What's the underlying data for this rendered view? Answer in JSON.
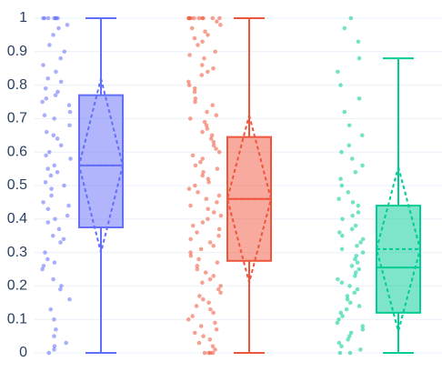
{
  "chart_data": {
    "type": "box",
    "ylim": [
      0,
      1
    ],
    "yticks": [
      0,
      0.1,
      0.2,
      0.3,
      0.4,
      0.5,
      0.6,
      0.7,
      0.8,
      0.9,
      1
    ],
    "grid": true,
    "series": [
      {
        "color": "#636efa",
        "min": 0,
        "q1": 0.375,
        "median": 0.56,
        "q3": 0.77,
        "max": 1,
        "mean": 0.56,
        "sd": 0.26,
        "points": [
          1,
          1,
          1,
          1,
          1,
          1,
          1,
          0.98,
          0.97,
          0.95,
          0.92,
          0.9,
          0.88,
          0.86,
          0.84,
          0.82,
          0.81,
          0.79,
          0.78,
          0.77,
          0.76,
          0.75,
          0.74,
          0.72,
          0.71,
          0.7,
          0.68,
          0.66,
          0.65,
          0.64,
          0.62,
          0.6,
          0.59,
          0.58,
          0.56,
          0.55,
          0.54,
          0.53,
          0.51,
          0.5,
          0.49,
          0.47,
          0.45,
          0.44,
          0.43,
          0.41,
          0.4,
          0.39,
          0.37,
          0.35,
          0.34,
          0.33,
          0.3,
          0.28,
          0.27,
          0.26,
          0.25,
          0.22,
          0.2,
          0.19,
          0.16,
          0.13,
          0.1,
          0.07,
          0.05,
          0.03,
          0.02,
          0.01,
          0
        ]
      },
      {
        "color": "#ef553b",
        "min": 0,
        "q1": 0.275,
        "median": 0.46,
        "q3": 0.645,
        "max": 1,
        "mean": 0.46,
        "sd": 0.25,
        "points": [
          1,
          1,
          1,
          1,
          1,
          1,
          1,
          1,
          1,
          1,
          0.99,
          0.98,
          0.97,
          0.96,
          0.95,
          0.94,
          0.93,
          0.92,
          0.9,
          0.89,
          0.88,
          0.86,
          0.85,
          0.84,
          0.83,
          0.81,
          0.8,
          0.79,
          0.78,
          0.76,
          0.75,
          0.74,
          0.72,
          0.71,
          0.7,
          0.69,
          0.68,
          0.67,
          0.66,
          0.65,
          0.64,
          0.63,
          0.62,
          0.61,
          0.6,
          0.59,
          0.58,
          0.57,
          0.56,
          0.55,
          0.54,
          0.53,
          0.52,
          0.51,
          0.5,
          0.49,
          0.48,
          0.47,
          0.46,
          0.45,
          0.44,
          0.43,
          0.42,
          0.41,
          0.4,
          0.39,
          0.38,
          0.37,
          0.36,
          0.35,
          0.34,
          0.33,
          0.32,
          0.31,
          0.3,
          0.29,
          0.28,
          0.27,
          0.26,
          0.25,
          0.24,
          0.23,
          0.22,
          0.21,
          0.2,
          0.19,
          0.18,
          0.17,
          0.16,
          0.15,
          0.14,
          0.13,
          0.12,
          0.11,
          0.1,
          0.09,
          0.08,
          0.07,
          0.06,
          0.05,
          0.04,
          0.03,
          0.02,
          0.01,
          0,
          0,
          0,
          0
        ]
      },
      {
        "color": "#00cc96",
        "min": 0,
        "q1": 0.12,
        "median": 0.255,
        "q3": 0.44,
        "max": 0.88,
        "mean": 0.31,
        "sd": 0.245,
        "points": [
          1,
          0.97,
          0.93,
          0.88,
          0.84,
          0.8,
          0.76,
          0.72,
          0.68,
          0.65,
          0.62,
          0.6,
          0.58,
          0.56,
          0.54,
          0.52,
          0.5,
          0.48,
          0.46,
          0.45,
          0.44,
          0.42,
          0.41,
          0.4,
          0.38,
          0.37,
          0.36,
          0.35,
          0.34,
          0.33,
          0.32,
          0.31,
          0.3,
          0.29,
          0.28,
          0.27,
          0.26,
          0.25,
          0.24,
          0.23,
          0.22,
          0.21,
          0.2,
          0.19,
          0.18,
          0.17,
          0.16,
          0.15,
          0.14,
          0.13,
          0.12,
          0.11,
          0.1,
          0.09,
          0.08,
          0.07,
          0.06,
          0.05,
          0.04,
          0.03,
          0.02,
          0.01,
          0,
          0
        ]
      }
    ]
  }
}
